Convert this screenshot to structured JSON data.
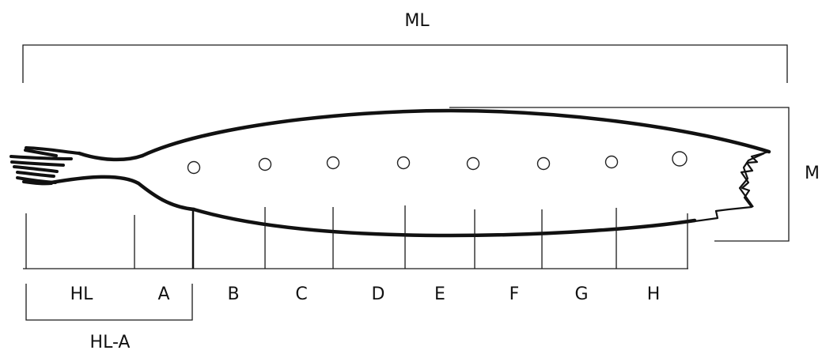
{
  "labels": {
    "mantle_length": "ML",
    "mantle_width": "M",
    "head_length": "HL",
    "head_length_a": "HL-A",
    "sections": [
      "A",
      "B",
      "C",
      "D",
      "E",
      "F",
      "G",
      "H"
    ]
  },
  "colors": {
    "ink": "#111111",
    "background": "#ffffff"
  }
}
